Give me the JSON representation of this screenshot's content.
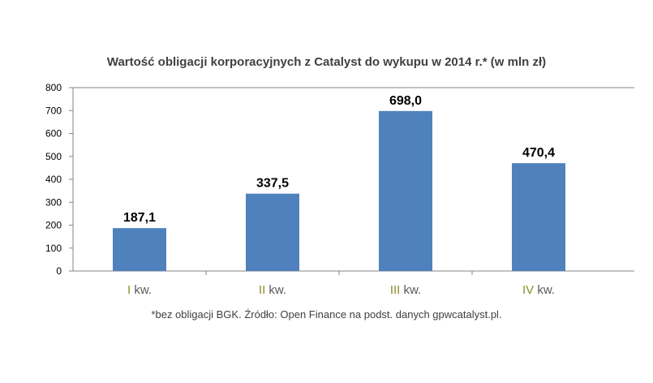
{
  "chart_data": {
    "type": "bar",
    "title": "Wartość obligacji korporacyjnych  z Catalyst do wykupu  w 2014 r.* (w mln zł)",
    "categories": [
      {
        "numeral": "I",
        "suffix": "kw."
      },
      {
        "numeral": "II",
        "suffix": "kw."
      },
      {
        "numeral": "III",
        "suffix": "kw."
      },
      {
        "numeral": "IV",
        "suffix": "kw."
      }
    ],
    "values": [
      187.1,
      337.5,
      698.0,
      470.4
    ],
    "data_labels": [
      "187,1",
      "337,5",
      "698,0",
      "470,4"
    ],
    "ylim": [
      0,
      800
    ],
    "yticks": [
      0,
      100,
      200,
      300,
      400,
      500,
      600,
      700,
      800
    ],
    "grid": false,
    "xlabel": "",
    "ylabel": "",
    "bar_color": "#4f81bd",
    "numeral_color": "#8c8c2a",
    "note": "*bez obligacji BGK. Źródło: Open Finance na podst. danych gpwcatalyst.pl."
  }
}
